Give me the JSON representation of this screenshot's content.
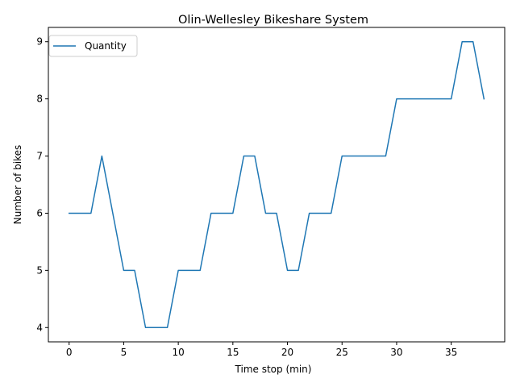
{
  "chart_data": {
    "type": "line",
    "title": "Olin-Wellesley Bikeshare System",
    "xlabel": "Time stop (min)",
    "ylabel": "Number of bikes",
    "xlim": [
      -1.9,
      39.9
    ],
    "ylim": [
      3.75,
      9.25
    ],
    "xticks": [
      0,
      5,
      10,
      15,
      20,
      25,
      30,
      35
    ],
    "yticks": [
      4,
      5,
      6,
      7,
      8,
      9
    ],
    "grid": false,
    "legend_position": "top-left",
    "x": [
      0,
      1,
      2,
      3,
      4,
      5,
      6,
      7,
      8,
      9,
      10,
      11,
      12,
      13,
      14,
      15,
      16,
      17,
      18,
      19,
      20,
      21,
      22,
      23,
      24,
      25,
      26,
      27,
      28,
      29,
      30,
      31,
      32,
      33,
      34,
      35,
      36,
      37,
      38
    ],
    "series": [
      {
        "name": "Quantity",
        "color": "#1f77b4",
        "values": [
          6,
          6,
          6,
          7,
          6,
          5,
          5,
          4,
          4,
          4,
          5,
          5,
          5,
          6,
          6,
          6,
          7,
          7,
          6,
          6,
          5,
          5,
          6,
          6,
          6,
          7,
          7,
          7,
          7,
          7,
          8,
          8,
          8,
          8,
          8,
          8,
          9,
          9,
          8
        ]
      }
    ]
  }
}
